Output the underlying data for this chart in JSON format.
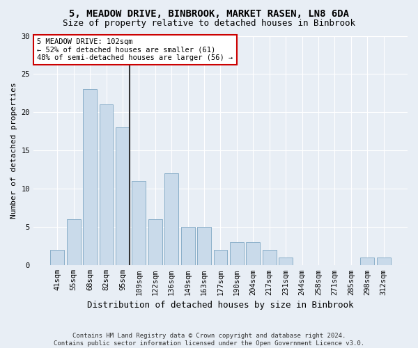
{
  "title1": "5, MEADOW DRIVE, BINBROOK, MARKET RASEN, LN8 6DA",
  "title2": "Size of property relative to detached houses in Binbrook",
  "xlabel": "Distribution of detached houses by size in Binbrook",
  "ylabel": "Number of detached properties",
  "categories": [
    "41sqm",
    "55sqm",
    "68sqm",
    "82sqm",
    "95sqm",
    "109sqm",
    "122sqm",
    "136sqm",
    "149sqm",
    "163sqm",
    "177sqm",
    "190sqm",
    "204sqm",
    "217sqm",
    "231sqm",
    "244sqm",
    "258sqm",
    "271sqm",
    "285sqm",
    "298sqm",
    "312sqm"
  ],
  "values": [
    2,
    6,
    23,
    21,
    18,
    11,
    6,
    12,
    5,
    5,
    2,
    3,
    3,
    2,
    1,
    0,
    0,
    0,
    0,
    1,
    1
  ],
  "bar_color": "#c9daea",
  "bar_edge_color": "#89aec8",
  "annotation_text": "5 MEADOW DRIVE: 102sqm\n← 52% of detached houses are smaller (61)\n48% of semi-detached houses are larger (56) →",
  "annotation_box_facecolor": "#ffffff",
  "annotation_box_edgecolor": "#cc0000",
  "vline_color": "#333333",
  "ylim": [
    0,
    30
  ],
  "yticks": [
    0,
    5,
    10,
    15,
    20,
    25,
    30
  ],
  "grid_color": "#ffffff",
  "background_color": "#e8eef5",
  "footer1": "Contains HM Land Registry data © Crown copyright and database right 2024.",
  "footer2": "Contains public sector information licensed under the Open Government Licence v3.0.",
  "title1_fontsize": 10,
  "title2_fontsize": 9,
  "xlabel_fontsize": 9,
  "ylabel_fontsize": 8,
  "tick_fontsize": 7.5,
  "annotation_fontsize": 7.5,
  "footer_fontsize": 6.5,
  "subject_bin_index": 4,
  "bar_width": 0.85
}
